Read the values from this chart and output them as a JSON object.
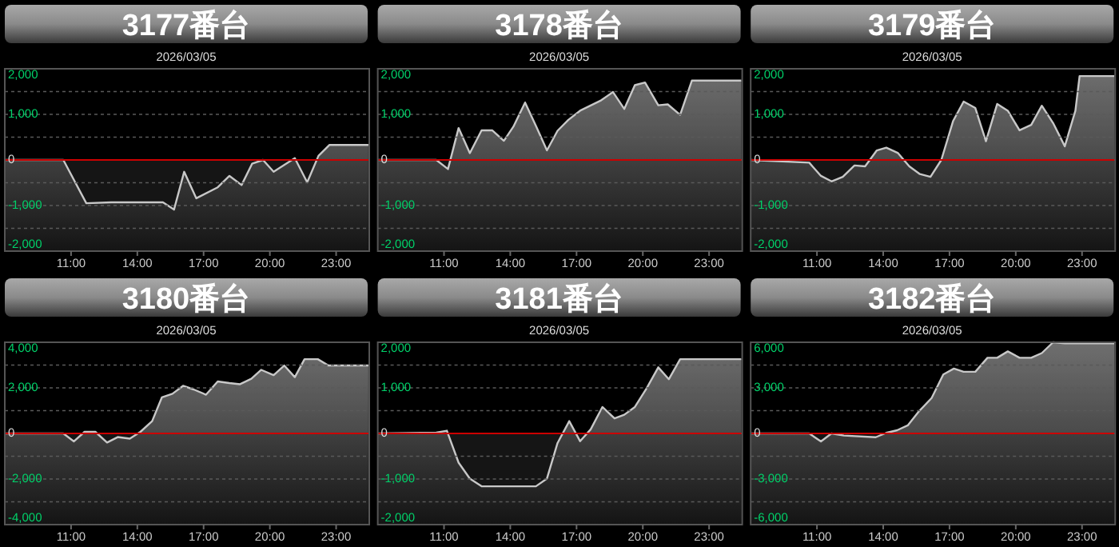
{
  "chart_data": [
    {
      "type": "area",
      "title": "3177番台",
      "subtitle": "2026/03/05",
      "xlim": [
        8,
        24.5
      ],
      "xticks": [
        {
          "value": 11,
          "label": "11:00"
        },
        {
          "value": 14,
          "label": "14:00"
        },
        {
          "value": 17,
          "label": "17:00"
        },
        {
          "value": 20,
          "label": "20:00"
        },
        {
          "value": 23,
          "label": "23:00"
        }
      ],
      "ylim": [
        -2000,
        2000
      ],
      "yticks": [
        {
          "value": -2000,
          "label": "-2,000"
        },
        {
          "value": -1500,
          "label": null
        },
        {
          "value": -1000,
          "label": "-1,000"
        },
        {
          "value": -500,
          "label": null
        },
        {
          "value": 0,
          "label": "0"
        },
        {
          "value": 500,
          "label": null
        },
        {
          "value": 1000,
          "label": "1,000"
        },
        {
          "value": 1500,
          "label": null
        },
        {
          "value": 2000,
          "label": "2,000"
        }
      ],
      "grid": "y",
      "ref_lines": [
        {
          "axis": "y",
          "value": 0,
          "color": "#cc0000"
        }
      ],
      "x": [
        8,
        10.65,
        11.69,
        12.82,
        15.16,
        15.66,
        16.12,
        16.67,
        17.64,
        18.17,
        18.72,
        19.2,
        19.69,
        20.17,
        21.13,
        21.69,
        22.2,
        22.7,
        24.46
      ],
      "series": [
        {
          "color": "#c8c8c8",
          "values": [
            0,
            0,
            -950,
            -930,
            -930,
            -1090,
            -260,
            -840,
            -600,
            -350,
            -550,
            -80,
            0,
            -260,
            40,
            -490,
            90,
            330,
            330
          ]
        }
      ]
    },
    {
      "type": "area",
      "title": "3178番台",
      "subtitle": "2026/03/05",
      "xlim": [
        8,
        24.5
      ],
      "xticks": [
        {
          "value": 11,
          "label": "11:00"
        },
        {
          "value": 14,
          "label": "14:00"
        },
        {
          "value": 17,
          "label": "17:00"
        },
        {
          "value": 20,
          "label": "20:00"
        },
        {
          "value": 23,
          "label": "23:00"
        }
      ],
      "ylim": [
        -2000,
        2000
      ],
      "yticks": [
        {
          "value": -2000,
          "label": "-2,000"
        },
        {
          "value": -1500,
          "label": null
        },
        {
          "value": -1000,
          "label": "-1,000"
        },
        {
          "value": -500,
          "label": null
        },
        {
          "value": 0,
          "label": "0"
        },
        {
          "value": 500,
          "label": null
        },
        {
          "value": 1000,
          "label": "1,000"
        },
        {
          "value": 1500,
          "label": null
        },
        {
          "value": 2000,
          "label": "2,000"
        }
      ],
      "grid": "y",
      "ref_lines": [
        {
          "axis": "y",
          "value": 0,
          "color": "#cc0000"
        }
      ],
      "x": [
        8,
        10.65,
        11.18,
        11.66,
        12.17,
        12.7,
        13.18,
        13.71,
        14.14,
        14.67,
        15.18,
        15.66,
        16.14,
        16.63,
        17.16,
        18.12,
        18.65,
        19.16,
        19.64,
        20.1,
        20.7,
        21.13,
        21.69,
        22.22,
        24.46
      ],
      "series": [
        {
          "color": "#c8c8c8",
          "values": [
            0,
            0,
            -200,
            700,
            150,
            650,
            650,
            420,
            730,
            1260,
            730,
            210,
            640,
            880,
            1080,
            1310,
            1490,
            1120,
            1640,
            1700,
            1200,
            1220,
            990,
            1740,
            1740
          ]
        }
      ]
    },
    {
      "type": "area",
      "title": "3179番台",
      "subtitle": "2026/03/05",
      "xlim": [
        8,
        24.5
      ],
      "xticks": [
        {
          "value": 11,
          "label": "11:00"
        },
        {
          "value": 14,
          "label": "14:00"
        },
        {
          "value": 17,
          "label": "17:00"
        },
        {
          "value": 20,
          "label": "20:00"
        },
        {
          "value": 23,
          "label": "23:00"
        }
      ],
      "ylim": [
        -2000,
        2000
      ],
      "yticks": [
        {
          "value": -2000,
          "label": "-2,000"
        },
        {
          "value": -1500,
          "label": null
        },
        {
          "value": -1000,
          "label": "-1,000"
        },
        {
          "value": -500,
          "label": null
        },
        {
          "value": 0,
          "label": "0"
        },
        {
          "value": 500,
          "label": null
        },
        {
          "value": 1000,
          "label": "1,000"
        },
        {
          "value": 1500,
          "label": null
        },
        {
          "value": 2000,
          "label": "2,000"
        }
      ],
      "grid": "y",
      "ref_lines": [
        {
          "axis": "y",
          "value": 0,
          "color": "#cc0000"
        }
      ],
      "x": [
        8,
        10.65,
        11.18,
        11.66,
        12.17,
        12.7,
        13.18,
        13.71,
        14.14,
        14.67,
        15.18,
        15.66,
        16.14,
        16.63,
        17.16,
        17.64,
        18.17,
        18.65,
        19.16,
        19.64,
        20.17,
        20.7,
        21.18,
        21.69,
        22.22,
        22.7,
        22.89,
        24.46
      ],
      "series": [
        {
          "color": "#c8c8c8",
          "values": [
            0,
            -60,
            -350,
            -470,
            -370,
            -120,
            -140,
            210,
            270,
            150,
            -140,
            -310,
            -370,
            0,
            850,
            1280,
            1140,
            410,
            1230,
            1080,
            650,
            770,
            1190,
            810,
            300,
            1080,
            1840,
            1840
          ]
        }
      ]
    },
    {
      "type": "area",
      "title": "3180番台",
      "subtitle": "2026/03/05",
      "xlim": [
        8,
        24.5
      ],
      "xticks": [
        {
          "value": 11,
          "label": "11:00"
        },
        {
          "value": 14,
          "label": "14:00"
        },
        {
          "value": 17,
          "label": "17:00"
        },
        {
          "value": 20,
          "label": "20:00"
        },
        {
          "value": 23,
          "label": "23:00"
        }
      ],
      "ylim": [
        -4000,
        4000
      ],
      "yticks": [
        {
          "value": -4000,
          "label": "-4,000"
        },
        {
          "value": -3000,
          "label": null
        },
        {
          "value": -2000,
          "label": "-2,000"
        },
        {
          "value": -1000,
          "label": null
        },
        {
          "value": 0,
          "label": "0"
        },
        {
          "value": 1000,
          "label": null
        },
        {
          "value": 2000,
          "label": "2,000"
        },
        {
          "value": 3000,
          "label": null
        },
        {
          "value": 4000,
          "label": "4,000"
        }
      ],
      "grid": "y",
      "ref_lines": [
        {
          "axis": "y",
          "value": 0,
          "color": "#cc0000"
        }
      ],
      "x": [
        8,
        10.65,
        11.13,
        11.61,
        12.1,
        12.63,
        13.11,
        13.66,
        14.14,
        14.67,
        15.11,
        15.59,
        16.07,
        16.55,
        17.11,
        17.64,
        18.17,
        18.65,
        19.16,
        19.61,
        20.17,
        20.65,
        21.13,
        21.57,
        22.17,
        22.65,
        24.46
      ],
      "series": [
        {
          "color": "#c8c8c8",
          "values": [
            0,
            0,
            -350,
            70,
            70,
            -400,
            -160,
            -230,
            70,
            540,
            1580,
            1740,
            2090,
            1930,
            1700,
            2280,
            2210,
            2160,
            2400,
            2790,
            2560,
            2980,
            2470,
            3260,
            3260,
            2980,
            2980
          ]
        }
      ]
    },
    {
      "type": "area",
      "title": "3181番台",
      "subtitle": "2026/03/05",
      "xlim": [
        8,
        24.5
      ],
      "xticks": [
        {
          "value": 11,
          "label": "11:00"
        },
        {
          "value": 14,
          "label": "14:00"
        },
        {
          "value": 17,
          "label": "17:00"
        },
        {
          "value": 20,
          "label": "20:00"
        },
        {
          "value": 23,
          "label": "23:00"
        }
      ],
      "ylim": [
        -2000,
        2000
      ],
      "yticks": [
        {
          "value": -2000,
          "label": "-2,000"
        },
        {
          "value": -1500,
          "label": null
        },
        {
          "value": -1000,
          "label": "-1,000"
        },
        {
          "value": -500,
          "label": null
        },
        {
          "value": 0,
          "label": "0"
        },
        {
          "value": 500,
          "label": null
        },
        {
          "value": 1000,
          "label": "1,000"
        },
        {
          "value": 1500,
          "label": null
        },
        {
          "value": 2000,
          "label": "2,000"
        }
      ],
      "grid": "y",
      "ref_lines": [
        {
          "axis": "y",
          "value": 0,
          "color": "#cc0000"
        }
      ],
      "x": [
        8,
        10.65,
        11.13,
        11.66,
        12.17,
        12.7,
        15.16,
        15.66,
        16.14,
        16.67,
        17.16,
        17.64,
        18.17,
        18.72,
        19.16,
        19.64,
        20.17,
        20.7,
        21.18,
        21.69,
        24.46
      ],
      "series": [
        {
          "color": "#c8c8c8",
          "values": [
            0,
            20,
            60,
            -640,
            -990,
            -1160,
            -1160,
            -990,
            -210,
            270,
            -170,
            90,
            580,
            330,
            410,
            580,
            990,
            1450,
            1190,
            1630,
            1630
          ]
        }
      ]
    },
    {
      "type": "area",
      "title": "3182番台",
      "subtitle": "2026/03/05",
      "xlim": [
        8,
        24.5
      ],
      "xticks": [
        {
          "value": 11,
          "label": "11:00"
        },
        {
          "value": 14,
          "label": "14:00"
        },
        {
          "value": 17,
          "label": "17:00"
        },
        {
          "value": 20,
          "label": "20:00"
        },
        {
          "value": 23,
          "label": "23:00"
        }
      ],
      "ylim": [
        -6000,
        6000
      ],
      "yticks": [
        {
          "value": -6000,
          "label": "-6,000"
        },
        {
          "value": -4500,
          "label": null
        },
        {
          "value": -3000,
          "label": "-3,000"
        },
        {
          "value": -1500,
          "label": null
        },
        {
          "value": 0,
          "label": "0"
        },
        {
          "value": 1500,
          "label": null
        },
        {
          "value": 3000,
          "label": "3,000"
        },
        {
          "value": 4500,
          "label": null
        },
        {
          "value": 6000,
          "label": "6,000"
        }
      ],
      "grid": "y",
      "ref_lines": [
        {
          "axis": "y",
          "value": 0,
          "color": "#cc0000"
        }
      ],
      "x": [
        8,
        10.65,
        11.18,
        11.66,
        12.22,
        13.66,
        14.14,
        14.63,
        15.11,
        15.59,
        16.19,
        16.72,
        17.2,
        17.64,
        18.17,
        18.72,
        19.16,
        19.64,
        20.17,
        20.7,
        21.18,
        21.69,
        22.22,
        24.46
      ],
      "series": [
        {
          "color": "#c8c8c8",
          "values": [
            0,
            0,
            -530,
            0,
            -140,
            -250,
            40,
            210,
            530,
            1410,
            2330,
            3880,
            4270,
            4060,
            4060,
            4980,
            4980,
            5400,
            4980,
            4980,
            5290,
            6000,
            5930,
            5930
          ]
        }
      ]
    }
  ]
}
